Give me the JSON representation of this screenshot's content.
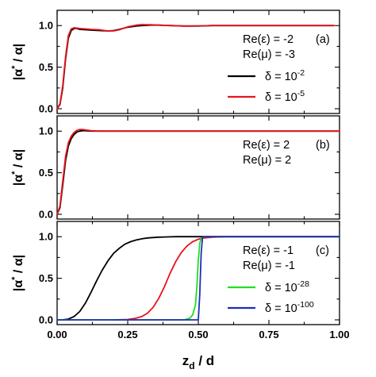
{
  "chart_data": [
    {
      "type": "line",
      "panel_label": "(a)",
      "annotation": [
        "Re(ε) = -2",
        "Re(μ) = -3"
      ],
      "ylabel_left": "|α",
      "ylabel_sup": "*",
      "ylabel_right": " / α|",
      "xlim": [
        0,
        1
      ],
      "ylim": [
        0,
        1.05
      ],
      "yticks": [
        "0.0",
        "0.5",
        "1.0"
      ],
      "series": [
        {
          "name_base": "δ = 10",
          "name_exp": "-2",
          "color": "#000000",
          "x": [
            0,
            0.01,
            0.02,
            0.03,
            0.04,
            0.05,
            0.06,
            0.07,
            0.08,
            0.1,
            0.12,
            0.15,
            0.18,
            0.2,
            0.22,
            0.25,
            0.28,
            0.3,
            0.33,
            0.36,
            0.4,
            0.45,
            0.5,
            0.55,
            0.6,
            0.7,
            0.8,
            0.9,
            0.98
          ],
          "y": [
            0,
            0.05,
            0.25,
            0.6,
            0.85,
            0.94,
            0.965,
            0.965,
            0.955,
            0.95,
            0.945,
            0.94,
            0.935,
            0.94,
            0.955,
            0.98,
            0.995,
            1.0,
            1.005,
            1.005,
            1.0,
            0.995,
            0.995,
            1.0,
            1.0,
            1.0,
            1.0,
            1.0,
            1.0
          ]
        },
        {
          "name_base": "δ = 10",
          "name_exp": "-5",
          "color": "#e8141b",
          "x": [
            0,
            0.01,
            0.02,
            0.03,
            0.04,
            0.05,
            0.06,
            0.07,
            0.08,
            0.1,
            0.12,
            0.15,
            0.18,
            0.2,
            0.22,
            0.25,
            0.28,
            0.3,
            0.33,
            0.36,
            0.4,
            0.45,
            0.5,
            0.55,
            0.6,
            0.7,
            0.8,
            0.9,
            0.98
          ],
          "y": [
            0,
            0.06,
            0.28,
            0.63,
            0.88,
            0.96,
            0.975,
            0.97,
            0.965,
            0.96,
            0.955,
            0.95,
            0.935,
            0.935,
            0.95,
            0.985,
            1.005,
            1.012,
            1.01,
            1.005,
            1.0,
            0.995,
            0.997,
            1.0,
            1.0,
            1.0,
            1.0,
            1.0,
            1.0
          ]
        }
      ]
    },
    {
      "type": "line",
      "panel_label": "(b)",
      "annotation": [
        "Re(ε) = 2",
        "Re(μ) = 2"
      ],
      "ylabel_left": "|α",
      "ylabel_sup": "*",
      "ylabel_right": " / α|",
      "xlim": [
        0,
        1
      ],
      "ylim": [
        0,
        1.05
      ],
      "yticks": [
        "0.0",
        "0.5",
        "1.0"
      ],
      "series": [
        {
          "color": "#000000",
          "x": [
            0,
            0.01,
            0.02,
            0.03,
            0.04,
            0.05,
            0.06,
            0.07,
            0.08,
            0.09,
            0.1,
            0.12,
            0.15,
            0.2,
            0.25,
            0.3,
            0.5,
            0.7,
            1.0
          ],
          "y": [
            0,
            0.08,
            0.35,
            0.65,
            0.82,
            0.91,
            0.96,
            0.99,
            1.0,
            1.005,
            1.005,
            1.0,
            1.0,
            1.0,
            1.0,
            1.0,
            1.0,
            1.0,
            1.0
          ]
        },
        {
          "color": "#e8141b",
          "x": [
            0,
            0.01,
            0.02,
            0.03,
            0.04,
            0.05,
            0.06,
            0.07,
            0.08,
            0.09,
            0.1,
            0.12,
            0.15,
            0.2,
            0.25,
            0.3,
            0.5,
            0.7,
            1.0
          ],
          "y": [
            0,
            0.1,
            0.4,
            0.7,
            0.86,
            0.94,
            0.985,
            1.01,
            1.02,
            1.02,
            1.015,
            1.005,
            1.0,
            1.0,
            1.0,
            1.0,
            1.0,
            1.0,
            1.0
          ]
        }
      ]
    },
    {
      "type": "line",
      "panel_label": "(c)",
      "annotation": [
        "Re(ε) = -1",
        "Re(μ) = -1"
      ],
      "ylabel_left": "|α",
      "ylabel_sup": "*",
      "ylabel_right": " / α|",
      "xlim": [
        0,
        1
      ],
      "ylim": [
        0,
        1.05
      ],
      "xticks": [
        "0.00",
        "0.25",
        "0.50",
        "0.75",
        "1.00"
      ],
      "yticks": [
        "0.0",
        "0.5",
        "1.0"
      ],
      "xlabel_base": "z",
      "xlabel_sub": "d",
      "xlabel_rest": " / d",
      "series": [
        {
          "color": "#000000",
          "x": [
            0,
            0.02,
            0.04,
            0.06,
            0.08,
            0.1,
            0.12,
            0.14,
            0.16,
            0.18,
            0.2,
            0.22,
            0.24,
            0.26,
            0.28,
            0.3,
            0.32,
            0.34,
            0.36,
            0.38,
            0.4,
            0.42,
            0.45,
            0.5,
            0.55,
            0.6,
            0.7,
            0.8,
            1.0
          ],
          "y": [
            0,
            0.0,
            0.01,
            0.04,
            0.1,
            0.2,
            0.33,
            0.47,
            0.6,
            0.71,
            0.8,
            0.86,
            0.91,
            0.94,
            0.96,
            0.975,
            0.985,
            0.99,
            0.995,
            0.997,
            0.998,
            1.0,
            1.0,
            1.0,
            1.0,
            1.0,
            1.0,
            1.0,
            1.0
          ]
        },
        {
          "color": "#e8141b",
          "x": [
            0.2,
            0.25,
            0.28,
            0.3,
            0.32,
            0.34,
            0.36,
            0.38,
            0.4,
            0.42,
            0.44,
            0.46,
            0.48,
            0.5,
            0.52,
            0.55,
            0.6,
            0.7,
            0.8,
            1.0
          ],
          "y": [
            0,
            0.005,
            0.02,
            0.04,
            0.08,
            0.15,
            0.26,
            0.4,
            0.56,
            0.7,
            0.81,
            0.89,
            0.94,
            0.97,
            0.985,
            0.995,
            1.0,
            1.0,
            1.0,
            1.0
          ]
        },
        {
          "name_base": "δ = 10",
          "name_exp": "-28",
          "color": "#22dd22",
          "x": [
            0,
            0.45,
            0.47,
            0.48,
            0.49,
            0.495,
            0.5,
            0.505,
            0.51,
            0.52,
            0.55,
            0.6,
            0.8,
            1.0
          ],
          "y": [
            0,
            0,
            0.02,
            0.06,
            0.18,
            0.4,
            0.72,
            0.92,
            0.98,
            1.0,
            1.0,
            1.0,
            1.0,
            1.0
          ]
        },
        {
          "name_base": "δ = 10",
          "name_exp": "-100",
          "color": "#1f2fb4",
          "x": [
            0,
            0.49,
            0.5,
            0.505,
            0.51,
            0.515,
            0.52,
            0.55,
            0.6,
            0.8,
            1.0
          ],
          "y": [
            0,
            0,
            0.0,
            0.3,
            0.8,
            0.99,
            1.0,
            1.0,
            1.0,
            1.0,
            1.0
          ]
        }
      ]
    }
  ]
}
